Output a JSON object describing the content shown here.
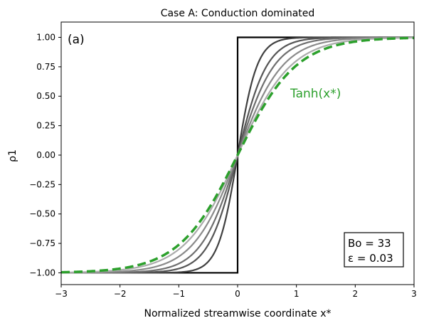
{
  "chart_data": {
    "type": "line",
    "title": "Case A: Conduction dominated",
    "xlabel": "Normalized streamwise coordinate x*",
    "ylabel": "ρ1",
    "xlim": [
      -3,
      3
    ],
    "ylim": [
      -1.1,
      1.13
    ],
    "xticks": [
      "−3",
      "−2",
      "−1",
      "0",
      "1",
      "2",
      "3"
    ],
    "yticks": [
      "−1.00",
      "−0.75",
      "−0.50",
      "−0.25",
      "0.00",
      "0.25",
      "0.50",
      "0.75",
      "1.00"
    ],
    "xtick_values": [
      -3,
      -2,
      -1,
      0,
      1,
      2,
      3
    ],
    "ytick_values": [
      -1.0,
      -0.75,
      -0.5,
      -0.25,
      0.0,
      0.25,
      0.5,
      0.75,
      1.0
    ],
    "panel_label": "(a)",
    "annotation": "Tanh(x*)",
    "params_box": [
      "Bo = 33",
      "ε = 0.03"
    ],
    "grid": false,
    "series": [
      {
        "kind": "step",
        "color": "#000000",
        "x": [
          -3,
          0,
          0,
          3
        ],
        "y": [
          -1,
          -1,
          1,
          1
        ]
      },
      {
        "kind": "tanh",
        "color": "#404040",
        "scale": 3.0
      },
      {
        "kind": "tanh",
        "color": "#555555",
        "scale": 2.0
      },
      {
        "kind": "tanh",
        "color": "#6e6e6e",
        "scale": 1.6
      },
      {
        "kind": "tanh",
        "color": "#8a8a8a",
        "scale": 1.3
      },
      {
        "kind": "tanh",
        "color": "#ababab",
        "scale": 1.1
      },
      {
        "kind": "tanh",
        "color": "#2ca02c",
        "scale": 1.0,
        "dashed": true
      }
    ]
  },
  "colors": {
    "accent_green": "#2ca02c"
  }
}
